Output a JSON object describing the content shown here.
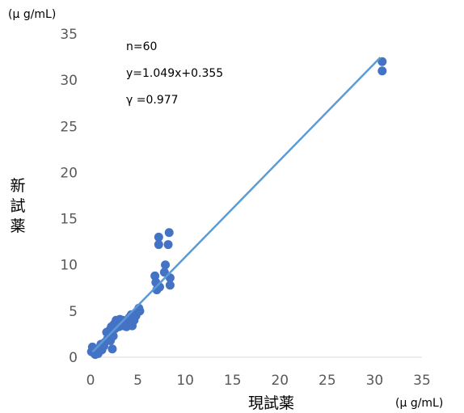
{
  "chart_data": {
    "type": "scatter",
    "x_unit_label": "(μ g/mL)",
    "y_unit_label": "(μ g/mL)",
    "xlabel": "現試薬",
    "ylabel": "新試薬",
    "xlim": [
      0,
      35
    ],
    "ylim": [
      0,
      35
    ],
    "x_ticks": [
      "0",
      "5",
      "10",
      "15",
      "20",
      "25",
      "30",
      "35"
    ],
    "y_ticks": [
      "0",
      "5",
      "10",
      "15",
      "20",
      "25",
      "30",
      "35"
    ],
    "annotations": [
      "n=60",
      "y=1.049x+0.355",
      "γ  =0.977"
    ],
    "trendline": {
      "slope": 1.049,
      "intercept": 0.355,
      "x_range": [
        0.2,
        30.6
      ]
    },
    "marker_color": "#4472C4",
    "line_color": "#5B9BD5",
    "points": [
      {
        "x": 0.1,
        "y": 0.6
      },
      {
        "x": 0.2,
        "y": 1.1
      },
      {
        "x": 0.3,
        "y": 0.5
      },
      {
        "x": 0.4,
        "y": 0.8
      },
      {
        "x": 0.5,
        "y": 0.3
      },
      {
        "x": 0.7,
        "y": 0.9
      },
      {
        "x": 0.8,
        "y": 0.4
      },
      {
        "x": 1.0,
        "y": 1.0
      },
      {
        "x": 1.2,
        "y": 0.8
      },
      {
        "x": 1.4,
        "y": 1.2
      },
      {
        "x": 1.5,
        "y": 1.6
      },
      {
        "x": 1.7,
        "y": 2.7
      },
      {
        "x": 1.8,
        "y": 2.0
      },
      {
        "x": 2.0,
        "y": 2.9
      },
      {
        "x": 2.1,
        "y": 1.8
      },
      {
        "x": 2.2,
        "y": 3.3
      },
      {
        "x": 2.3,
        "y": 0.9
      },
      {
        "x": 2.4,
        "y": 2.3
      },
      {
        "x": 2.5,
        "y": 3.6
      },
      {
        "x": 2.6,
        "y": 3.1
      },
      {
        "x": 2.7,
        "y": 4.0
      },
      {
        "x": 2.8,
        "y": 3.4
      },
      {
        "x": 2.9,
        "y": 3.8
      },
      {
        "x": 3.0,
        "y": 3.3
      },
      {
        "x": 3.1,
        "y": 4.1
      },
      {
        "x": 3.2,
        "y": 3.5
      },
      {
        "x": 3.3,
        "y": 3.9
      },
      {
        "x": 3.5,
        "y": 3.4
      },
      {
        "x": 3.6,
        "y": 3.7
      },
      {
        "x": 3.8,
        "y": 3.3
      },
      {
        "x": 3.9,
        "y": 4.0
      },
      {
        "x": 4.0,
        "y": 3.6
      },
      {
        "x": 4.1,
        "y": 4.3
      },
      {
        "x": 4.2,
        "y": 3.5
      },
      {
        "x": 4.3,
        "y": 4.6
      },
      {
        "x": 4.4,
        "y": 3.4
      },
      {
        "x": 4.5,
        "y": 4.2
      },
      {
        "x": 4.6,
        "y": 4.0
      },
      {
        "x": 4.8,
        "y": 4.5
      },
      {
        "x": 5.0,
        "y": 4.9
      },
      {
        "x": 5.1,
        "y": 5.3
      },
      {
        "x": 5.2,
        "y": 5.0
      },
      {
        "x": 6.8,
        "y": 8.8
      },
      {
        "x": 6.9,
        "y": 8.1
      },
      {
        "x": 7.0,
        "y": 7.3
      },
      {
        "x": 7.2,
        "y": 12.2
      },
      {
        "x": 7.2,
        "y": 13.0
      },
      {
        "x": 7.3,
        "y": 7.6
      },
      {
        "x": 7.8,
        "y": 9.2
      },
      {
        "x": 7.9,
        "y": 10.0
      },
      {
        "x": 8.2,
        "y": 12.2
      },
      {
        "x": 8.3,
        "y": 13.5
      },
      {
        "x": 8.4,
        "y": 8.6
      },
      {
        "x": 8.4,
        "y": 7.8
      },
      {
        "x": 0.6,
        "y": 0.5
      },
      {
        "x": 1.1,
        "y": 1.4
      },
      {
        "x": 1.9,
        "y": 2.5
      },
      {
        "x": 3.4,
        "y": 4.0
      },
      {
        "x": 30.8,
        "y": 32.0
      },
      {
        "x": 30.8,
        "y": 31.0
      }
    ]
  }
}
